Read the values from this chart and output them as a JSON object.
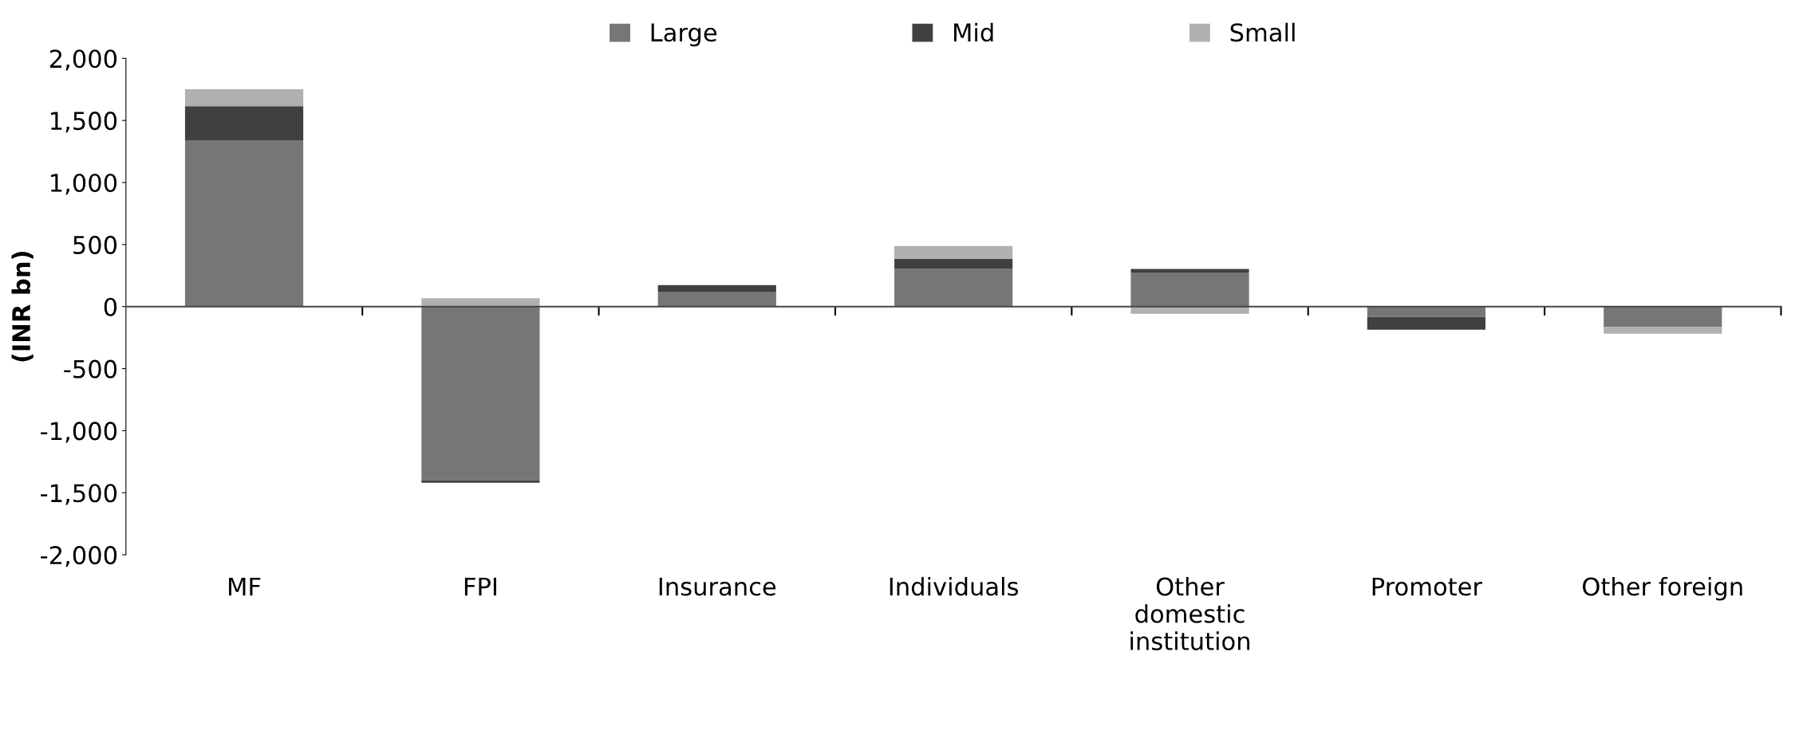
{
  "chart_data": {
    "type": "bar",
    "stacked": true,
    "ylabel": "(INR bn)",
    "categories": [
      "MF",
      "FPI",
      "Insurance",
      "Individuals",
      "Other domestic institution",
      "Promoter",
      "Other foreign"
    ],
    "series": [
      {
        "name": "Large",
        "color": "#767676",
        "values": [
          1340,
          -1400,
          121,
          303,
          274,
          -84,
          -164
        ]
      },
      {
        "name": "Mid",
        "color": "#404040",
        "values": [
          275,
          -20,
          52,
          81,
          29,
          -102,
          0
        ]
      },
      {
        "name": "Small",
        "color": "#b0b0b0",
        "values": [
          137,
          67,
          0,
          104,
          -58,
          0,
          -55
        ]
      }
    ],
    "ylim": [
      -2000,
      2000
    ],
    "yticks": [
      {
        "value": -2000,
        "label": "-2,000"
      },
      {
        "value": -1500,
        "label": "-1,500"
      },
      {
        "value": -1000,
        "label": "-1,000"
      },
      {
        "value": -500,
        "label": "-500"
      },
      0,
      500,
      {
        "value": 1000,
        "label": "1,000"
      },
      {
        "value": 1500,
        "label": "1,500"
      },
      {
        "value": 2000,
        "label": "2,000"
      }
    ],
    "legend": "top"
  }
}
